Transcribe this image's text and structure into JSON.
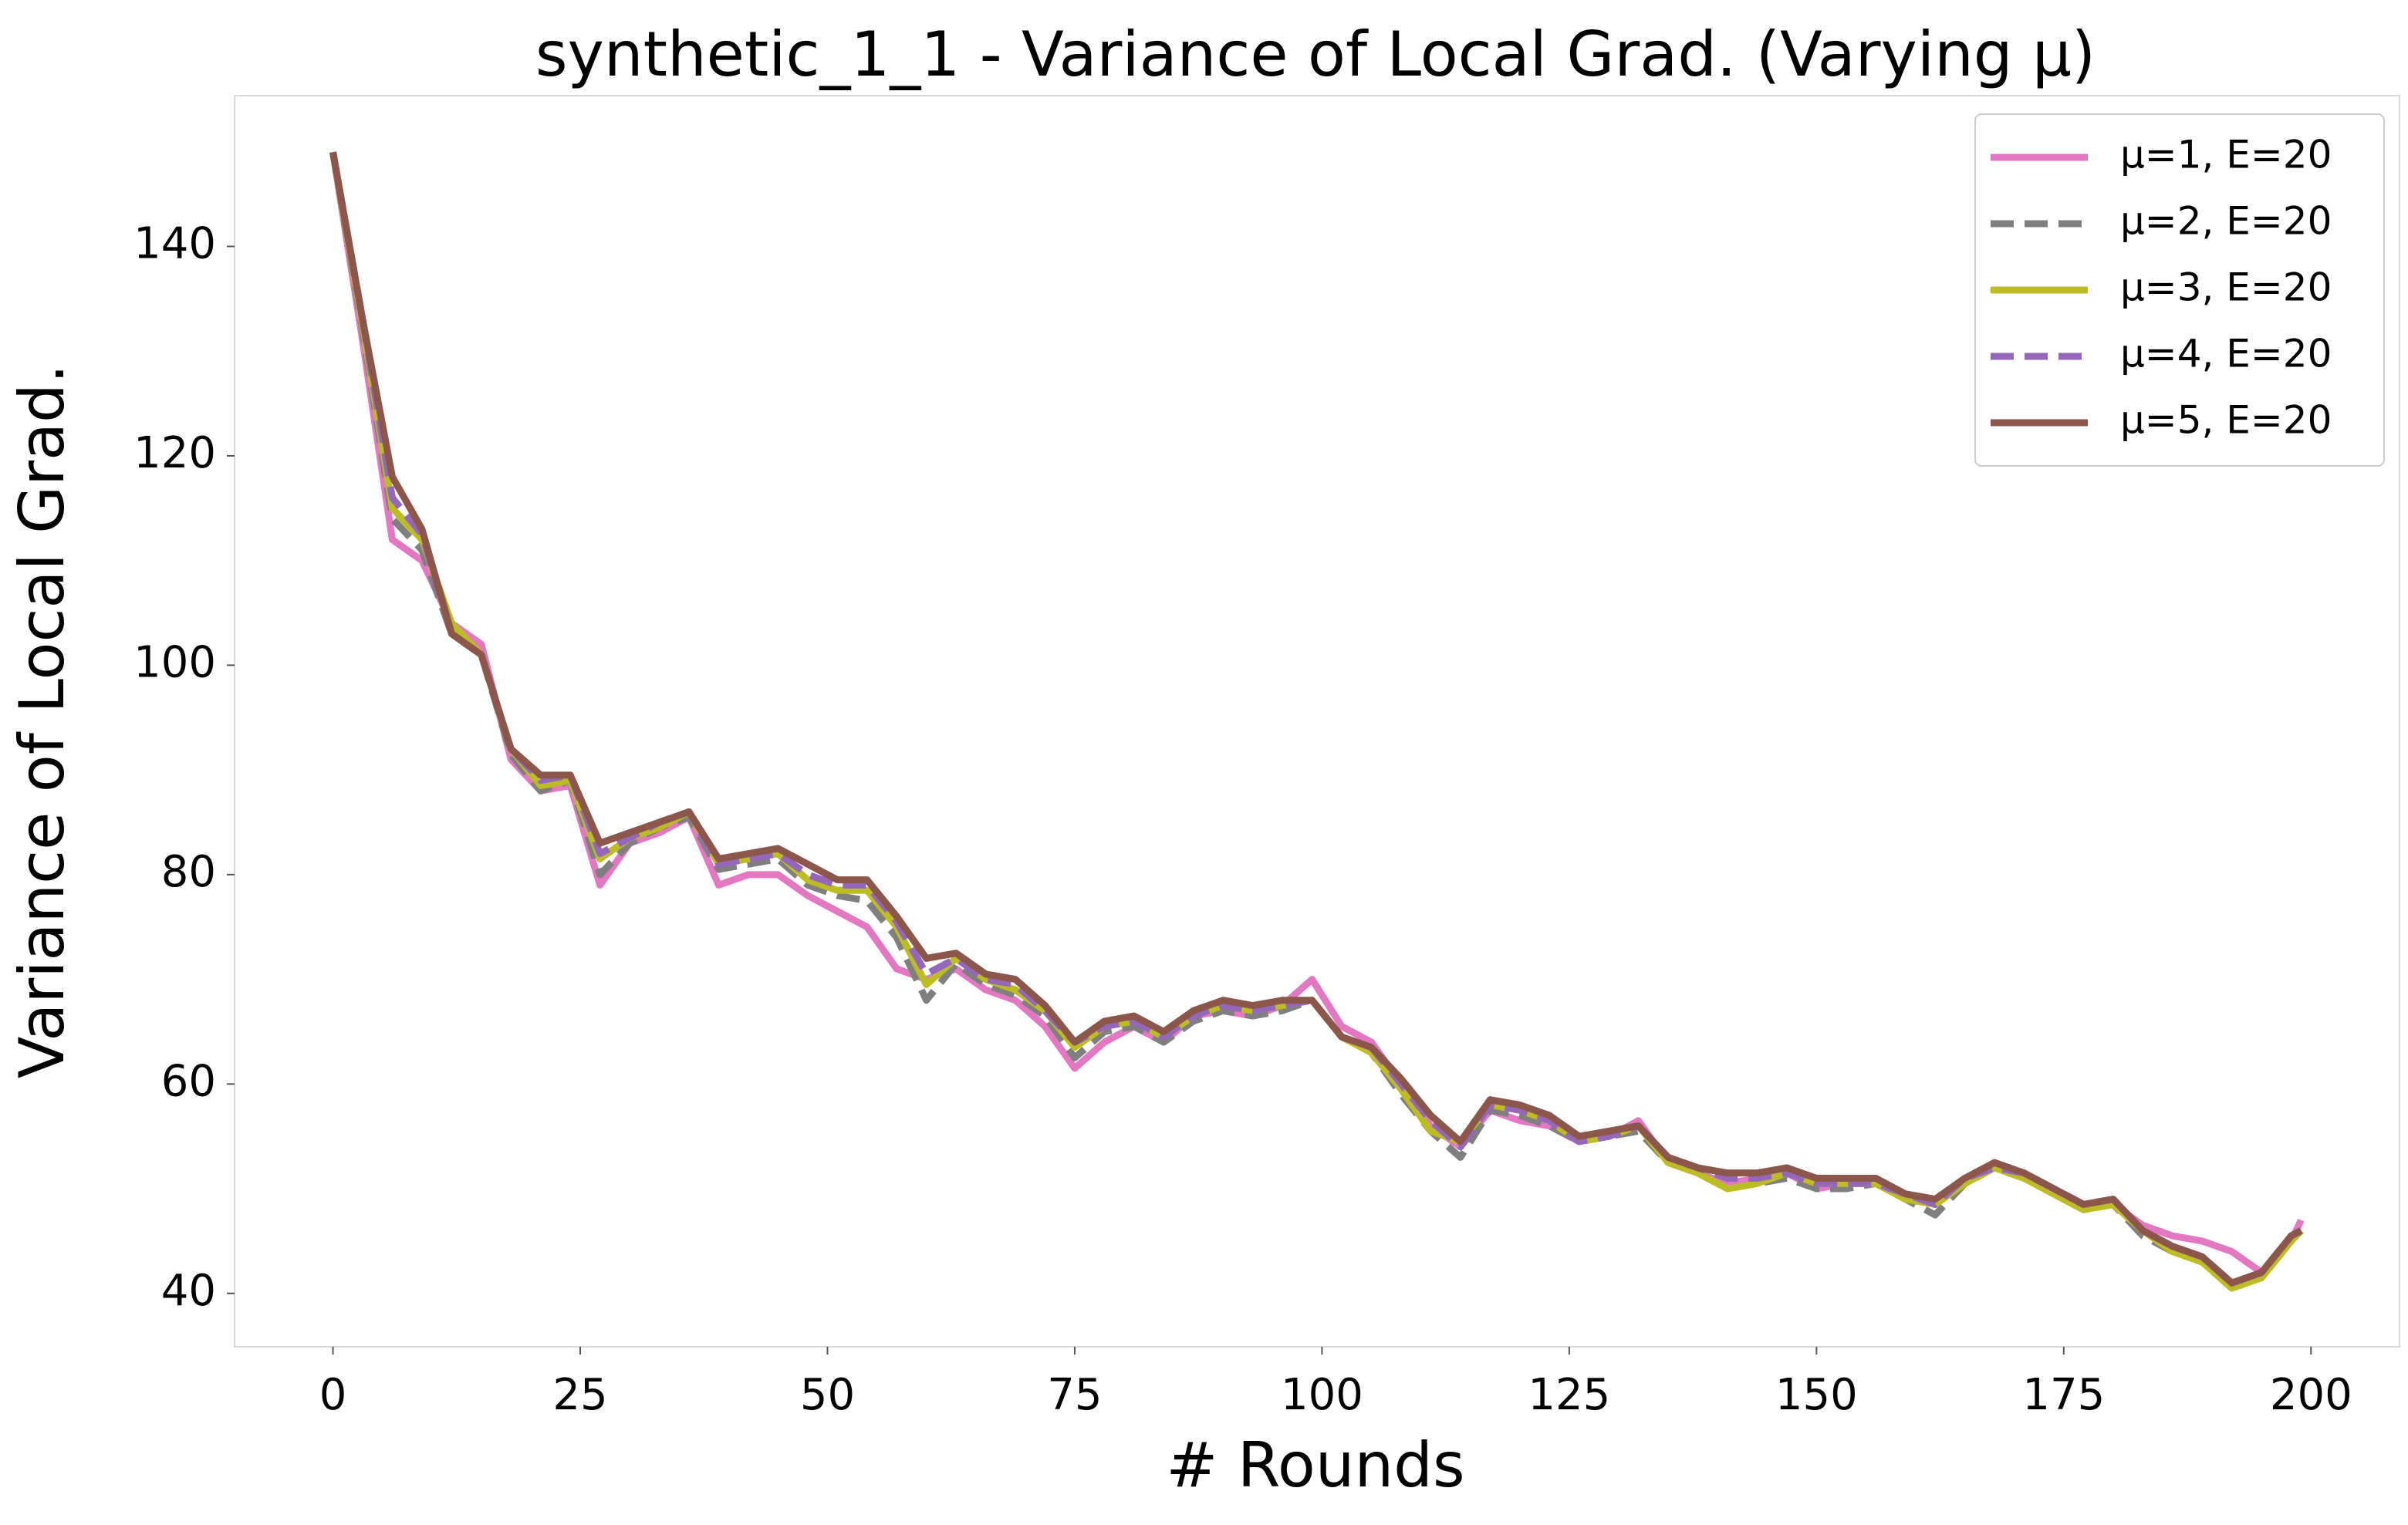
{
  "chart_data": {
    "type": "line",
    "title": "synthetic_1_1 - Variance of Local Grad. (Varying μ)",
    "xlabel": "# Rounds",
    "ylabel": "Variance of Local Grad.",
    "x": [
      0,
      3,
      6,
      9,
      12,
      15,
      18,
      21,
      24,
      27,
      30,
      33,
      36,
      39,
      42,
      45,
      48,
      51,
      54,
      57,
      60,
      63,
      66,
      69,
      72,
      75,
      78,
      81,
      84,
      87,
      90,
      93,
      96,
      99,
      102,
      105,
      108,
      111,
      114,
      117,
      120,
      123,
      126,
      129,
      132,
      135,
      138,
      141,
      144,
      147,
      150,
      153,
      156,
      159,
      162,
      165,
      168,
      171,
      174,
      177,
      180,
      183,
      186,
      189,
      192,
      195,
      198,
      199
    ],
    "series": [
      {
        "name": "μ=1, E=20",
        "color": "#e377c2",
        "linestyle": "solid",
        "values": [
          149,
          131,
          112,
          110,
          104,
          102,
          91,
          88,
          88.5,
          79,
          83,
          84,
          85.5,
          79,
          80,
          80,
          78,
          76.5,
          75,
          71,
          70,
          71,
          69,
          68,
          65.5,
          61.5,
          64,
          65.5,
          64,
          66.5,
          67,
          66.5,
          67.5,
          70,
          65.5,
          64,
          60,
          56,
          54,
          57.5,
          56.5,
          56,
          54.5,
          55,
          56.5,
          52.5,
          51.5,
          50.5,
          51,
          51.5,
          50,
          50.5,
          50.5,
          49.5,
          48.5,
          51,
          52,
          51.5,
          49.5,
          48,
          48.5,
          46.5,
          45.5,
          45,
          44,
          42,
          45,
          47
        ]
      },
      {
        "name": "μ=2, E=20",
        "color": "#7f7f7f",
        "linestyle": "dashed",
        "values": [
          149,
          132,
          114,
          111,
          103,
          101,
          91.5,
          88,
          89,
          80,
          83,
          84.5,
          85.5,
          80.5,
          81,
          81.5,
          79,
          78,
          77.5,
          74,
          68,
          71.5,
          69.5,
          68.5,
          66.5,
          62.5,
          65,
          65.5,
          64,
          66,
          67,
          66.5,
          67,
          68,
          64.5,
          63,
          59,
          55.5,
          53,
          57.5,
          57,
          56,
          54.5,
          55,
          55.5,
          52.5,
          51.5,
          50,
          50.5,
          51,
          50,
          50,
          50.5,
          49,
          47.5,
          50.5,
          52,
          51,
          49.5,
          48,
          48.5,
          45.5,
          44,
          43,
          40.5,
          41.5,
          45,
          46
        ]
      },
      {
        "name": "μ=3, E=20",
        "color": "#bcbd22",
        "linestyle": "solid",
        "values": [
          149,
          132.5,
          115,
          112,
          104,
          101,
          92,
          88.5,
          89,
          81.5,
          83.5,
          84.5,
          86,
          81,
          81.5,
          82,
          79.5,
          78.5,
          78.5,
          75,
          69.5,
          72,
          70,
          69,
          67,
          63.5,
          65.5,
          66,
          64.5,
          66.5,
          67.5,
          67,
          67.5,
          68,
          64.5,
          63,
          59.5,
          55.5,
          54.5,
          58,
          57.5,
          56.5,
          54.5,
          55,
          56,
          52.5,
          51.5,
          50,
          50.5,
          51.5,
          50.5,
          50.5,
          50.5,
          49,
          48.5,
          50.5,
          52,
          51,
          49.5,
          48,
          48.5,
          46,
          44,
          43,
          40.5,
          41.5,
          45,
          46
        ]
      },
      {
        "name": "μ=4, E=20",
        "color": "#9467bd",
        "linestyle": "dashed",
        "values": [
          149,
          133,
          116,
          112.5,
          103,
          101,
          92,
          89,
          89.5,
          82,
          83.5,
          85,
          86,
          81,
          81.5,
          82,
          80,
          79,
          79,
          75.5,
          70.5,
          72,
          70,
          69.5,
          67,
          64,
          65.5,
          66,
          64.5,
          66.5,
          67.5,
          67,
          67.5,
          68,
          64.5,
          63.5,
          60,
          56.5,
          54,
          58,
          57.5,
          56.5,
          54.5,
          55,
          56,
          53,
          52,
          51,
          51,
          51.5,
          50.5,
          50.5,
          50.5,
          49.5,
          48.5,
          51,
          52,
          51.5,
          50,
          48.5,
          49,
          46,
          44.5,
          43.5,
          41,
          42,
          45.5,
          46
        ]
      },
      {
        "name": "μ=5, E=20",
        "color": "#8c564b",
        "linestyle": "solid",
        "values": [
          149,
          133,
          118,
          113,
          103,
          101,
          92,
          89.5,
          89.5,
          83,
          84,
          85,
          86,
          81.5,
          82,
          82.5,
          81,
          79.5,
          79.5,
          76,
          72,
          72.5,
          70.5,
          70,
          67.5,
          64,
          66,
          66.5,
          65,
          67,
          68,
          67.5,
          68,
          68,
          64.5,
          63.5,
          60.5,
          57,
          54.5,
          58.5,
          58,
          57,
          55,
          55.5,
          56,
          53,
          52,
          51.5,
          51.5,
          52,
          51,
          51,
          51,
          49.5,
          49,
          51,
          52.5,
          51.5,
          50,
          48.5,
          49,
          46,
          44.5,
          43.5,
          41,
          42,
          45.5,
          46
        ]
      }
    ],
    "xlim": [
      -9.95,
      208.95
    ],
    "xticks": [
      0,
      25,
      50,
      75,
      100,
      125,
      150,
      175,
      200
    ],
    "ylim": [
      34.9,
      154.4
    ],
    "yticks": [
      40,
      60,
      80,
      100,
      120,
      140
    ],
    "grid": false,
    "legend": "upper right"
  }
}
